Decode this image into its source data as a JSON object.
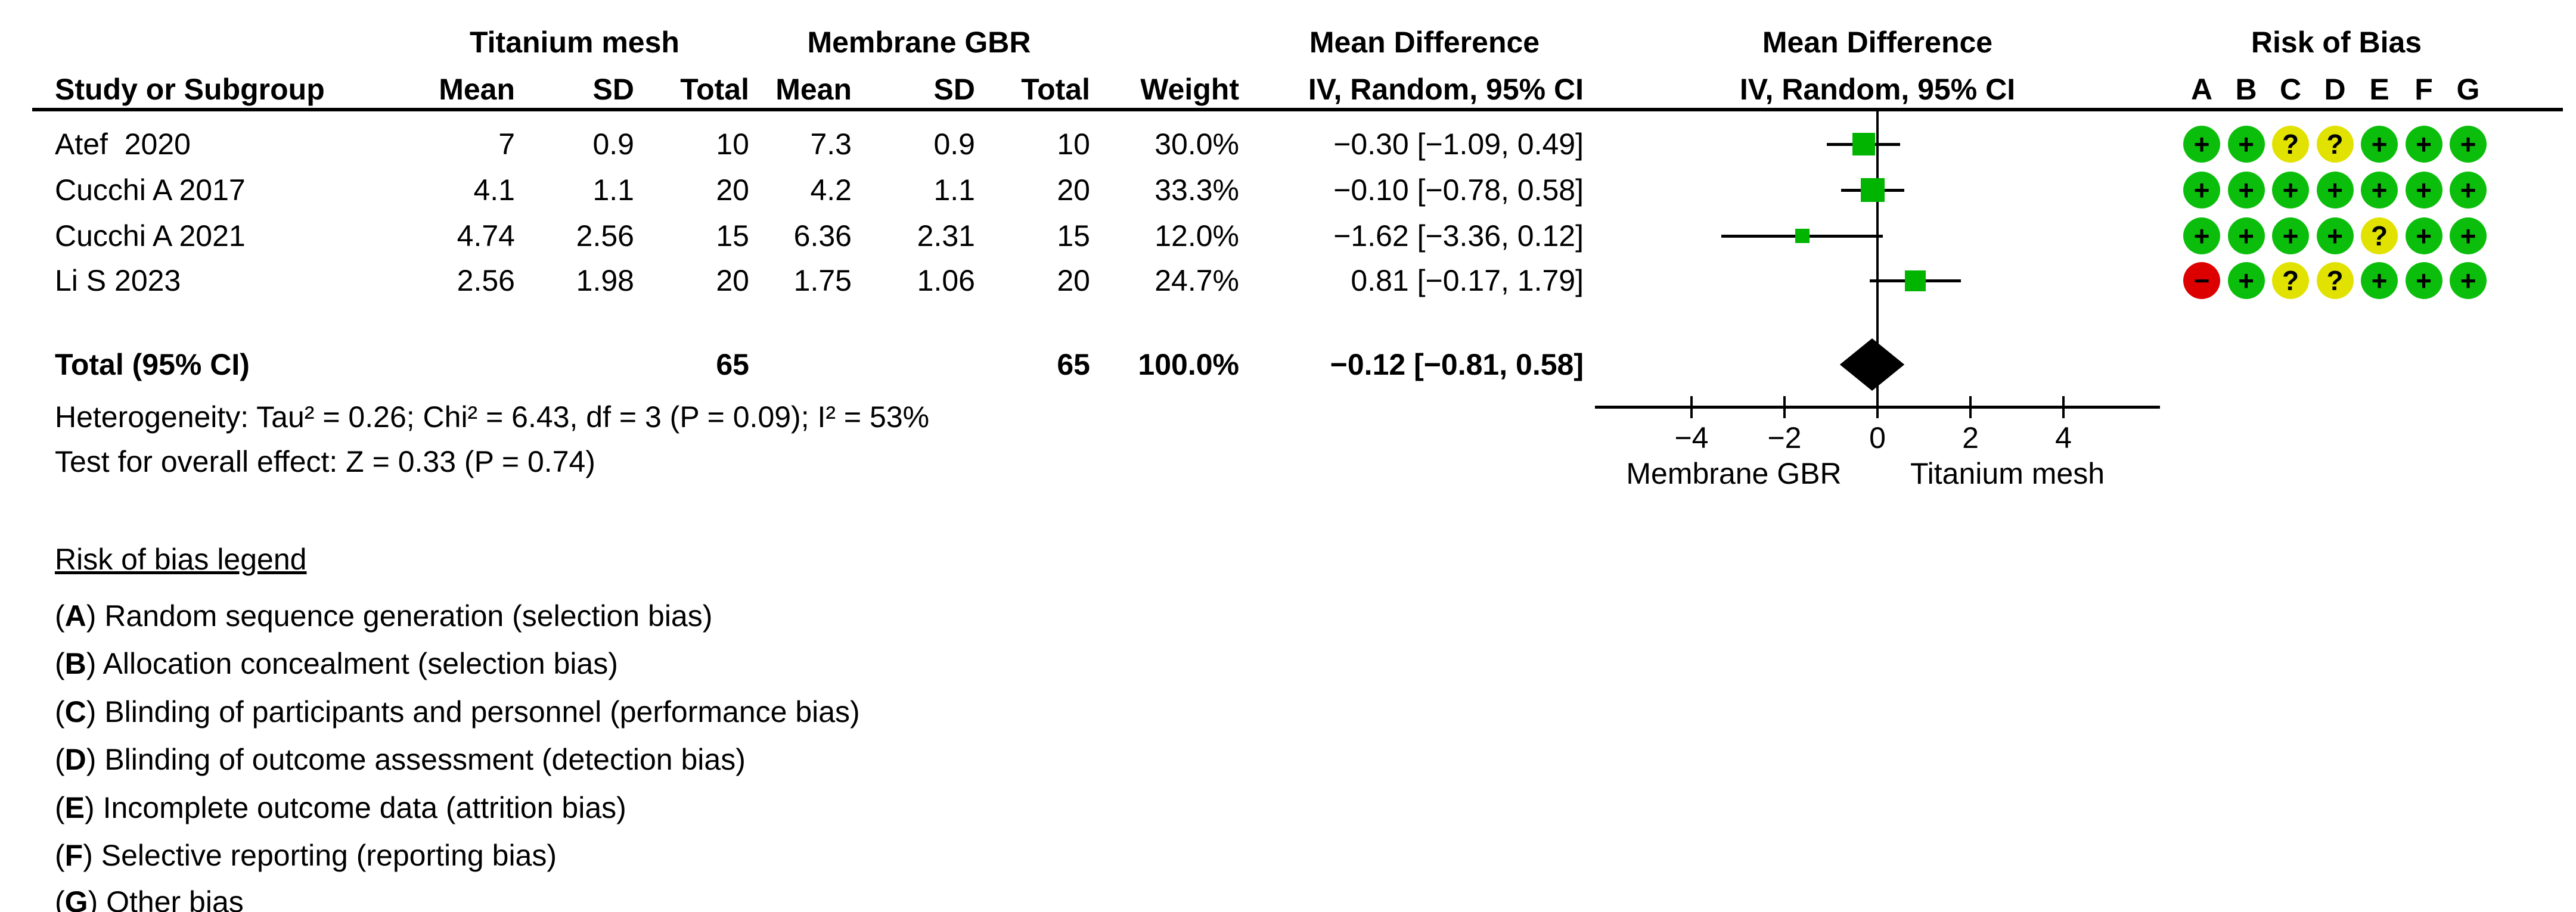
{
  "header": {
    "group1": "Titanium mesh",
    "group2": "Membrane GBR",
    "study_col": "Study or Subgroup",
    "mean_col": "Mean",
    "sd_col": "SD",
    "total_col": "Total",
    "weight_col": "Weight",
    "md_text_line1": "Mean Difference",
    "md_text_line2": "IV, Random, 95% CI",
    "md_plot_line1": "Mean Difference",
    "md_plot_line2": "IV, Random, 95% CI",
    "rob_title": "Risk of Bias",
    "rob_letters": [
      "A",
      "B",
      "C",
      "D",
      "E",
      "F",
      "G"
    ]
  },
  "studies": [
    {
      "name": "Atef  2020",
      "mean1": "7",
      "sd1": "0.9",
      "total1": "10",
      "mean2": "7.3",
      "sd2": "0.9",
      "total2": "10",
      "weight": "30.0%",
      "ci_text": "−0.30 [−1.09, 0.49]",
      "rob": [
        "+",
        "+",
        "?",
        "?",
        "+",
        "+",
        "+"
      ]
    },
    {
      "name": "Cucchi A 2017",
      "mean1": "4.1",
      "sd1": "1.1",
      "total1": "20",
      "mean2": "4.2",
      "sd2": "1.1",
      "total2": "20",
      "weight": "33.3%",
      "ci_text": "−0.10 [−0.78, 0.58]",
      "rob": [
        "+",
        "+",
        "+",
        "+",
        "+",
        "+",
        "+"
      ]
    },
    {
      "name": "Cucchi A 2021",
      "mean1": "4.74",
      "sd1": "2.56",
      "total1": "15",
      "mean2": "6.36",
      "sd2": "2.31",
      "total2": "15",
      "weight": "12.0%",
      "ci_text": "−1.62 [−3.36, 0.12]",
      "rob": [
        "+",
        "+",
        "+",
        "+",
        "?",
        "+",
        "+"
      ]
    },
    {
      "name": "Li S 2023",
      "mean1": "2.56",
      "sd1": "1.98",
      "total1": "20",
      "mean2": "1.75",
      "sd2": "1.06",
      "total2": "20",
      "weight": "24.7%",
      "ci_text": "0.81 [−0.17, 1.79]",
      "rob": [
        "−",
        "+",
        "?",
        "?",
        "+",
        "+",
        "+"
      ]
    }
  ],
  "total_row": {
    "label": "Total (95% CI)",
    "total1": "65",
    "total2": "65",
    "weight": "100.0%",
    "ci_text": "−0.12 [−0.81, 0.58]"
  },
  "footnotes": {
    "heterogeneity": "Heterogeneity: Tau² = 0.26; Chi² = 6.43, df = 3 (P = 0.09); I² = 53%",
    "overall_effect": "Test for overall effect: Z = 0.33 (P = 0.74)"
  },
  "axis": {
    "tick_labels": [
      "−4",
      "−2",
      "0",
      "2",
      "4"
    ],
    "favours_left": "Membrane GBR",
    "favours_right": "Titanium mesh"
  },
  "legend": {
    "title": "Risk of bias legend",
    "items": [
      {
        "letter": "A",
        "text": "Random sequence generation (selection bias)"
      },
      {
        "letter": "B",
        "text": "Allocation concealment (selection bias)"
      },
      {
        "letter": "C",
        "text": "Blinding of participants and personnel (performance bias)"
      },
      {
        "letter": "D",
        "text": "Blinding of outcome assessment (detection bias)"
      },
      {
        "letter": "E",
        "text": "Incomplete outcome data (attrition bias)"
      },
      {
        "letter": "F",
        "text": "Selective reporting (reporting bias)"
      },
      {
        "letter": "G",
        "text": "Other bias"
      }
    ]
  },
  "colors": {
    "rob_low": "#0cbe0c",
    "rob_unclear": "#e2e200",
    "rob_high": "#dd0000",
    "effect_square": "#00b400",
    "ink": "#000000"
  },
  "chart_data": {
    "type": "scatter",
    "subtype": "forest_plot",
    "title": "Mean Difference, IV, Random, 95% CI",
    "xlabel": "",
    "ylabel": "",
    "xlim": [
      -6,
      6
    ],
    "ticks": [
      -4,
      -2,
      0,
      2,
      4
    ],
    "x_axis_label_left": "Membrane GBR",
    "x_axis_label_right": "Titanium mesh",
    "studies": [
      {
        "name": "Atef  2020",
        "md": -0.3,
        "ci_low": -1.09,
        "ci_high": 0.49,
        "weight_pct": 30.0
      },
      {
        "name": "Cucchi A 2017",
        "md": -0.1,
        "ci_low": -0.78,
        "ci_high": 0.58,
        "weight_pct": 33.3
      },
      {
        "name": "Cucchi A 2021",
        "md": -1.62,
        "ci_low": -3.36,
        "ci_high": 0.12,
        "weight_pct": 12.0
      },
      {
        "name": "Li S 2023",
        "md": 0.81,
        "ci_low": -0.17,
        "ci_high": 1.79,
        "weight_pct": 24.7
      }
    ],
    "total": {
      "label": "Total (95% CI)",
      "md": -0.12,
      "ci_low": -0.81,
      "ci_high": 0.58,
      "weight_pct": 100.0
    },
    "heterogeneity": {
      "tau2": 0.26,
      "chi2": 6.43,
      "df": 3,
      "p": 0.09,
      "i2_pct": 53
    },
    "overall_effect": {
      "z": 0.33,
      "p": 0.74
    }
  }
}
